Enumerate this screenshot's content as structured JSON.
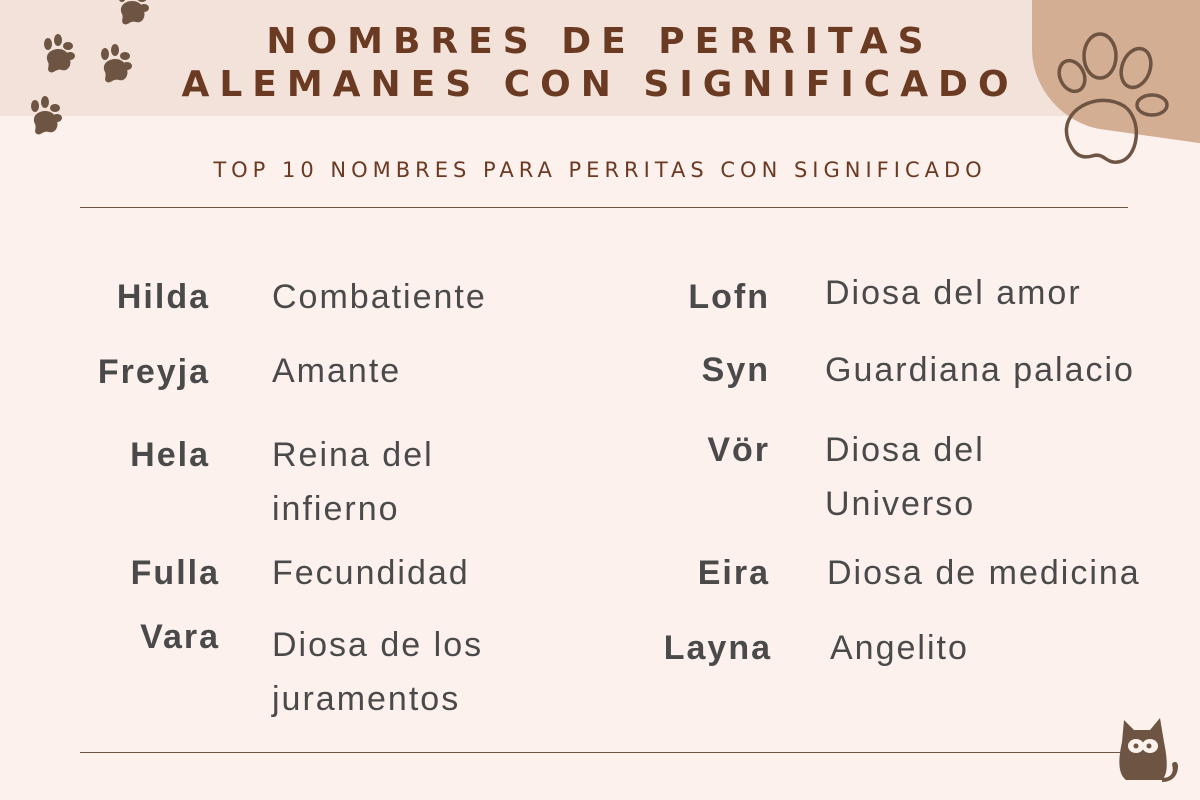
{
  "header": {
    "title_line1": "NOMBRES DE PERRITAS",
    "title_line2": "ALEMANES CON SIGNIFICADO",
    "subtitle": "TOP 10 NOMBRES PARA PERRITAS CON SIGNIFICADO"
  },
  "colors": {
    "band": "#f2e2d9",
    "background": "#fdf1ee",
    "accent_tan": "#d4ae92",
    "paw_brown": "#6e5442",
    "title": "#6b3a22",
    "text": "#4a4a4a"
  },
  "left": [
    {
      "name": "Hilda",
      "meaning": "Combatiente"
    },
    {
      "name": "Freyja",
      "meaning": "Amante"
    },
    {
      "name": "Hela",
      "meaning": "Reina del infierno"
    },
    {
      "name": "Fulla",
      "meaning": "Fecundidad"
    },
    {
      "name": "Vara",
      "meaning": "Diosa de los juramentos"
    }
  ],
  "right": [
    {
      "name": "Lofn",
      "meaning": "Diosa del amor"
    },
    {
      "name": "Syn",
      "meaning": "Guardiana palacio"
    },
    {
      "name": "Vör",
      "meaning": "Diosa del Universo"
    },
    {
      "name": "Eira",
      "meaning": "Diosa de medicina"
    },
    {
      "name": "Layna",
      "meaning": "Angelito"
    }
  ],
  "icons": [
    "paw-print-icon",
    "paw-outline-icon",
    "cat-icon"
  ]
}
